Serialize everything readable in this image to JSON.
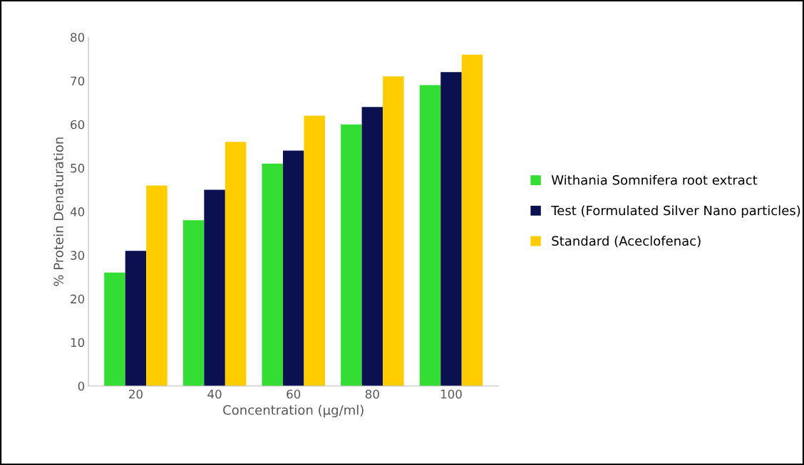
{
  "chart_data": {
    "type": "bar",
    "xlabel": "Concentration (µg/ml)",
    "ylabel": "% Protein Denaturation",
    "categories": [
      "20",
      "40",
      "60",
      "80",
      "100"
    ],
    "series": [
      {
        "name": "Withania Somnifera root extract",
        "color": "#33dd33",
        "values": [
          26,
          38,
          51,
          60,
          69
        ]
      },
      {
        "name": "Test (Formulated Silver Nano particles)",
        "color": "#0a1050",
        "values": [
          31,
          45,
          54,
          64,
          72
        ]
      },
      {
        "name": "Standard (Aceclofenac)",
        "color": "#ffcc00",
        "values": [
          46,
          56,
          62,
          71,
          76
        ]
      }
    ],
    "ylim": [
      0,
      80
    ],
    "yticks": [
      0,
      10,
      20,
      30,
      40,
      50,
      60,
      70,
      80
    ],
    "grid": false,
    "legend": "right"
  }
}
